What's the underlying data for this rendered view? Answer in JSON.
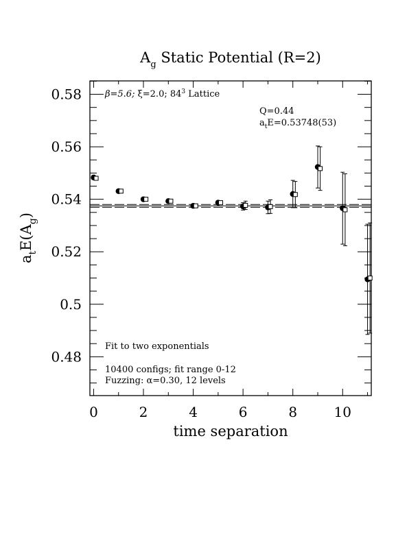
{
  "chart_data": {
    "type": "scatter",
    "title": "A_g Static Potential (R=2)",
    "title_parts": {
      "main": "A",
      "sub": "g",
      "rest": " Static Potential (R=2)"
    },
    "xlabel": "time separation",
    "ylabel_parts": {
      "a": "a",
      "t": "t",
      "e": "E(A",
      "g": "g",
      "close": ")"
    },
    "xlim": [
      -0.15,
      11.15
    ],
    "ylim": [
      0.4652,
      0.5851
    ],
    "x_ticks": [
      "0",
      "2",
      "4",
      "6",
      "8",
      "10"
    ],
    "x_tick_values": [
      0,
      2,
      4,
      6,
      8,
      10
    ],
    "y_ticks": [
      "0.48",
      "0.5",
      "0.52",
      "0.54",
      "0.56",
      "0.58"
    ],
    "y_tick_values": [
      0.48,
      0.5,
      0.52,
      0.54,
      0.56,
      0.58
    ],
    "grid": false,
    "annotations": {
      "lattice_parts": {
        "beta": "β=5.6; ",
        "xi": "ξ=2.0; 84",
        "sup": "3",
        "rest": " Lattice"
      },
      "q": "Q=0.44",
      "fit_parts": {
        "a": "a",
        "t": "t",
        "rest": "E=0.53748(53)"
      },
      "fit_desc": "Fit to two exponentials",
      "configs": "10400 configs; fit range 0-12",
      "fuzzing": "Fuzzing: α=0.30, 12 levels"
    },
    "fit": {
      "value": 0.53748,
      "error": 0.00053
    },
    "series": [
      {
        "marker": "filled-circle",
        "x": [
          0,
          1,
          2,
          3,
          4,
          5,
          6,
          7,
          8,
          9,
          10,
          11
        ],
        "y": [
          0.5483,
          0.5431,
          0.54,
          0.5393,
          0.5375,
          0.5387,
          0.5373,
          0.5369,
          0.542,
          0.5523,
          0.5366,
          0.5095
        ],
        "err": [
          0.0005,
          0.0004,
          0.0005,
          0.0005,
          0.0005,
          0.0007,
          0.0014,
          0.0024,
          0.0052,
          0.008,
          0.0137,
          0.021
        ]
      },
      {
        "marker": "open-square",
        "x": [
          0.1,
          1.1,
          2.1,
          3.1,
          4.1,
          5.1,
          6.1,
          7.1,
          8.1,
          9.1,
          10.1,
          11.1
        ],
        "y": [
          0.548,
          0.5431,
          0.54,
          0.5393,
          0.5375,
          0.5387,
          0.5377,
          0.5372,
          0.5418,
          0.5517,
          0.536,
          0.51
        ],
        "err": [
          0.0005,
          0.0004,
          0.0005,
          0.0005,
          0.0005,
          0.0007,
          0.0016,
          0.0026,
          0.005,
          0.0083,
          0.0137,
          0.021
        ]
      }
    ]
  }
}
